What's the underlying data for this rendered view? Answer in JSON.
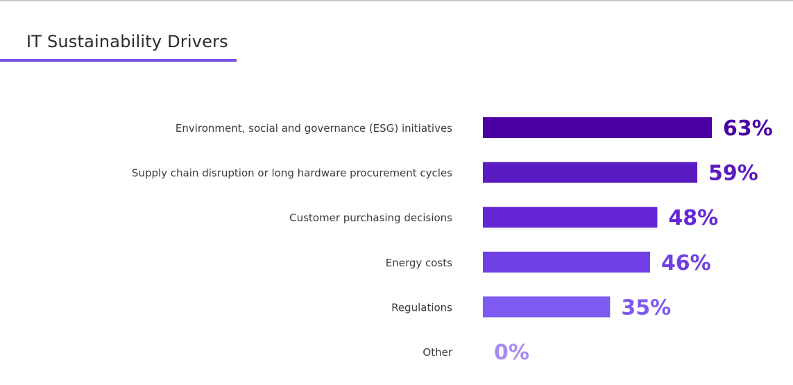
{
  "title": "IT Sustainability Drivers",
  "colors": {
    "title_underline": "#7b52e8",
    "bars": [
      "#4b00a3",
      "#5a1bc0",
      "#6527d6",
      "#7040e4",
      "#7d5af0",
      "#a58cf5"
    ]
  },
  "chart_data": {
    "type": "bar",
    "orientation": "horizontal",
    "title": "IT Sustainability Drivers",
    "categories": [
      "Environment, social and governance (ESG) initiatives",
      "Supply chain disruption or long hardware procurement cycles",
      "Customer purchasing decisions",
      "Energy costs",
      "Regulations",
      "Other"
    ],
    "values": [
      63,
      59,
      48,
      46,
      35,
      0
    ],
    "value_labels": [
      "63%",
      "59%",
      "48%",
      "46%",
      "35%",
      "0%"
    ],
    "xlim": [
      0,
      63
    ],
    "xlabel": "",
    "ylabel": "",
    "grid": false,
    "legend": "none"
  }
}
